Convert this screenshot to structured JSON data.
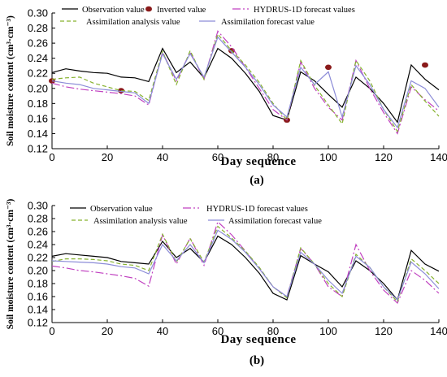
{
  "chart_data": [
    {
      "type": "line",
      "panel_label": "(a)",
      "xlabel": "Day sequence",
      "ylabel": "Soil moisture content (cm³·cm⁻³)",
      "xlim": [
        0,
        140
      ],
      "ylim": [
        0.12,
        0.3
      ],
      "xticks": [
        "0",
        "20",
        "40",
        "60",
        "80",
        "100",
        "120",
        "140"
      ],
      "yticks": [
        "0.12",
        "0.14",
        "0.16",
        "0.18",
        "0.20",
        "0.22",
        "0.24",
        "0.26",
        "0.28",
        "0.30"
      ],
      "legend_position": "top",
      "series": [
        {
          "name": "Observation value",
          "color": "#000000",
          "dash": "",
          "x": [
            0,
            5,
            10,
            15,
            20,
            25,
            30,
            35,
            40,
            45,
            50,
            55,
            60,
            65,
            70,
            75,
            80,
            85,
            90,
            95,
            100,
            105,
            110,
            115,
            120,
            125,
            130,
            135,
            140
          ],
          "y": [
            0.221,
            0.226,
            0.223,
            0.221,
            0.22,
            0.215,
            0.214,
            0.209,
            0.253,
            0.221,
            0.235,
            0.214,
            0.253,
            0.24,
            0.22,
            0.196,
            0.164,
            0.158,
            0.222,
            0.21,
            0.192,
            0.175,
            0.215,
            0.2,
            0.18,
            0.155,
            0.231,
            0.212,
            0.198
          ]
        },
        {
          "name": "Inverted value",
          "color": "#8a1a1a",
          "marker": true,
          "x": [
            0,
            25,
            65,
            85,
            100,
            135
          ],
          "y": [
            0.21,
            0.197,
            0.25,
            0.158,
            0.228,
            0.231
          ]
        },
        {
          "name": "HYDRUS-1D forecast values",
          "color": "#c040c0",
          "dash": "10,3,2,3",
          "x": [
            0,
            5,
            10,
            15,
            20,
            25,
            30,
            35,
            40,
            45,
            50,
            55,
            60,
            65,
            70,
            75,
            80,
            85,
            90,
            95,
            100,
            105,
            110,
            115,
            120,
            125,
            130,
            135,
            140
          ],
          "y": [
            0.207,
            0.202,
            0.199,
            0.197,
            0.195,
            0.193,
            0.19,
            0.178,
            0.248,
            0.21,
            0.248,
            0.212,
            0.276,
            0.255,
            0.228,
            0.2,
            0.172,
            0.158,
            0.235,
            0.2,
            0.175,
            0.158,
            0.237,
            0.2,
            0.168,
            0.14,
            0.202,
            0.185,
            0.17
          ]
        },
        {
          "name": "Assimilation analysis value",
          "color": "#86b22e",
          "dash": "5,3",
          "x": [
            0,
            5,
            10,
            15,
            20,
            25,
            30,
            35,
            40,
            45,
            50,
            55,
            60,
            65,
            70,
            75,
            80,
            85,
            90,
            95,
            100,
            105,
            110,
            115,
            120,
            125,
            130,
            135,
            140
          ],
          "y": [
            0.212,
            0.214,
            0.215,
            0.207,
            0.202,
            0.197,
            0.196,
            0.184,
            0.249,
            0.205,
            0.25,
            0.212,
            0.272,
            0.25,
            0.231,
            0.208,
            0.18,
            0.158,
            0.237,
            0.204,
            0.178,
            0.153,
            0.237,
            0.21,
            0.172,
            0.143,
            0.205,
            0.183,
            0.163
          ]
        },
        {
          "name": "Assimilation forecast value",
          "color": "#8c8cd8",
          "dash": "",
          "x": [
            0,
            5,
            10,
            15,
            20,
            25,
            30,
            35,
            40,
            45,
            50,
            55,
            60,
            65,
            70,
            75,
            80,
            85,
            90,
            95,
            100,
            105,
            110,
            115,
            120,
            125,
            130,
            135,
            140
          ],
          "y": [
            0.21,
            0.207,
            0.205,
            0.2,
            0.198,
            0.196,
            0.194,
            0.18,
            0.246,
            0.212,
            0.246,
            0.215,
            0.268,
            0.248,
            0.228,
            0.205,
            0.178,
            0.162,
            0.228,
            0.205,
            0.222,
            0.162,
            0.23,
            0.205,
            0.172,
            0.148,
            0.21,
            0.2,
            0.175
          ]
        }
      ]
    },
    {
      "type": "line",
      "panel_label": "(b)",
      "xlabel": "Day sequence",
      "ylabel": "Soil moisture content (cm³·cm⁻³)",
      "xlim": [
        0,
        140
      ],
      "ylim": [
        0.12,
        0.3
      ],
      "xticks": [
        "0",
        "20",
        "40",
        "60",
        "80",
        "100",
        "120",
        "140"
      ],
      "yticks": [
        "0.12",
        "0.14",
        "0.16",
        "0.18",
        "0.20",
        "0.22",
        "0.24",
        "0.26",
        "0.28",
        "0.30"
      ],
      "legend_position": "top",
      "series": [
        {
          "name": "Observation value",
          "color": "#000000",
          "dash": "",
          "x": [
            0,
            5,
            10,
            15,
            20,
            25,
            30,
            35,
            40,
            45,
            50,
            55,
            60,
            65,
            70,
            75,
            80,
            85,
            90,
            95,
            100,
            105,
            110,
            115,
            120,
            125,
            130,
            135,
            140
          ],
          "y": [
            0.222,
            0.226,
            0.224,
            0.222,
            0.22,
            0.214,
            0.212,
            0.21,
            0.245,
            0.22,
            0.234,
            0.213,
            0.253,
            0.24,
            0.22,
            0.196,
            0.165,
            0.155,
            0.223,
            0.21,
            0.198,
            0.175,
            0.215,
            0.2,
            0.18,
            0.155,
            0.231,
            0.21,
            0.199
          ]
        },
        {
          "name": "HYDRUS-1D forecast values",
          "color": "#c040c0",
          "dash": "10,3,2,3",
          "x": [
            0,
            5,
            10,
            15,
            20,
            25,
            30,
            35,
            40,
            45,
            50,
            55,
            60,
            65,
            70,
            75,
            80,
            85,
            90,
            95,
            100,
            105,
            110,
            115,
            120,
            125,
            130,
            135,
            140
          ],
          "y": [
            0.207,
            0.204,
            0.2,
            0.198,
            0.195,
            0.192,
            0.188,
            0.176,
            0.255,
            0.21,
            0.25,
            0.208,
            0.275,
            0.255,
            0.23,
            0.203,
            0.175,
            0.16,
            0.234,
            0.21,
            0.175,
            0.16,
            0.24,
            0.2,
            0.17,
            0.15,
            0.2,
            0.185,
            0.165
          ]
        },
        {
          "name": "Assimilation analysis value",
          "color": "#86b22e",
          "dash": "5,3",
          "x": [
            0,
            5,
            10,
            15,
            20,
            25,
            30,
            35,
            40,
            45,
            50,
            55,
            60,
            65,
            70,
            75,
            80,
            85,
            90,
            95,
            100,
            105,
            110,
            115,
            120,
            125,
            130,
            135,
            140
          ],
          "y": [
            0.214,
            0.218,
            0.218,
            0.217,
            0.215,
            0.21,
            0.208,
            0.2,
            0.256,
            0.213,
            0.249,
            0.213,
            0.268,
            0.25,
            0.23,
            0.205,
            0.175,
            0.158,
            0.235,
            0.21,
            0.18,
            0.16,
            0.225,
            0.205,
            0.175,
            0.152,
            0.218,
            0.2,
            0.18
          ]
        },
        {
          "name": "Assimilation forecast value",
          "color": "#8c8cd8",
          "dash": "",
          "x": [
            0,
            5,
            10,
            15,
            20,
            25,
            30,
            35,
            40,
            45,
            50,
            55,
            60,
            65,
            70,
            75,
            80,
            85,
            90,
            95,
            100,
            105,
            110,
            115,
            120,
            125,
            130,
            135,
            140
          ],
          "y": [
            0.215,
            0.214,
            0.213,
            0.212,
            0.21,
            0.206,
            0.204,
            0.195,
            0.24,
            0.215,
            0.24,
            0.212,
            0.262,
            0.248,
            0.228,
            0.203,
            0.175,
            0.16,
            0.228,
            0.21,
            0.185,
            0.165,
            0.222,
            0.205,
            0.175,
            0.155,
            0.213,
            0.195,
            0.172
          ]
        }
      ]
    }
  ]
}
